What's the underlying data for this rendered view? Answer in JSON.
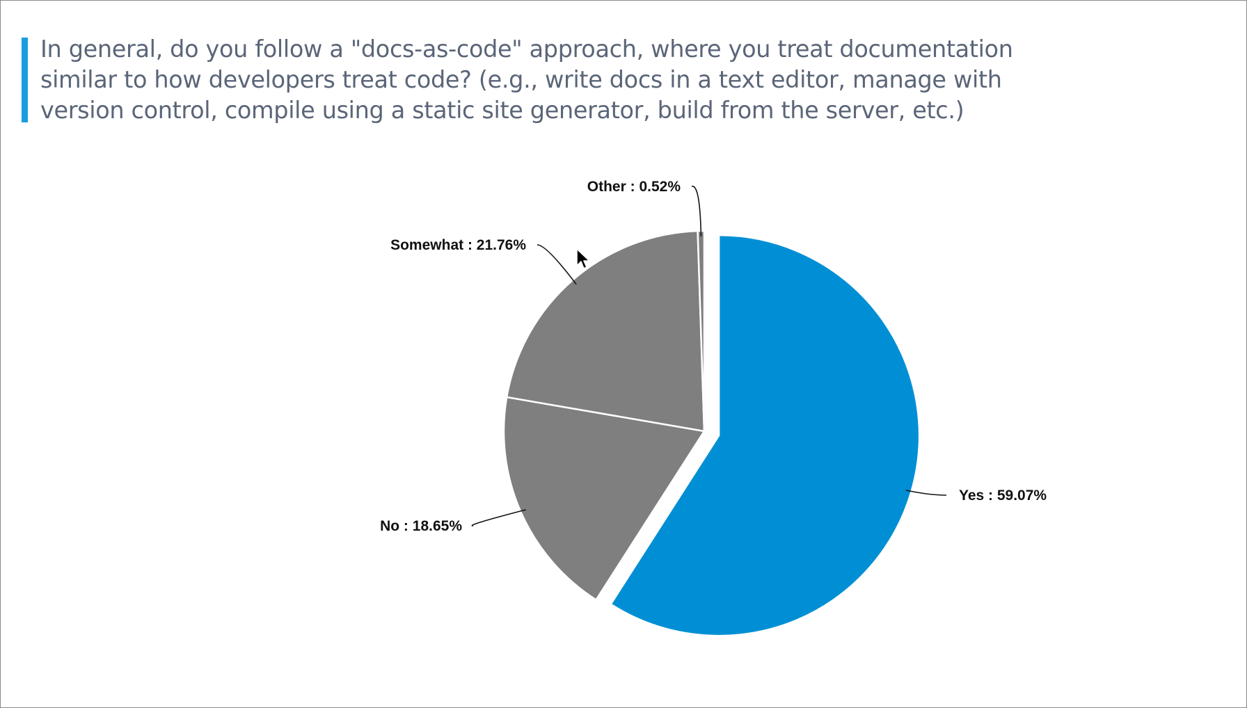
{
  "question": {
    "title": "In general, do you follow a \"docs-as-code\" approach, where you treat documentation similar to how developers treat code? (e.g., write docs in a text editor, manage with version control, compile using a static site generator, build from the server, etc.)",
    "accent_color": "#1a9de0"
  },
  "chart_data": {
    "type": "pie",
    "title": "",
    "start": "12 o'clock, clockwise",
    "exploded": "Yes",
    "slices": [
      {
        "label": "Yes",
        "value": 59.07,
        "display": "Yes : 59.07%",
        "color": "#008fd5"
      },
      {
        "label": "No",
        "value": 18.65,
        "display": "No : 18.65%",
        "color": "#7f7f7f"
      },
      {
        "label": "Somewhat",
        "value": 21.76,
        "display": "Somewhat : 21.76%",
        "color": "#7f7f7f"
      },
      {
        "label": "Other",
        "value": 0.52,
        "display": "Other : 0.52%",
        "color": "#7f7f7f"
      }
    ]
  },
  "cursor": {
    "icon": "mouse-pointer-icon"
  }
}
